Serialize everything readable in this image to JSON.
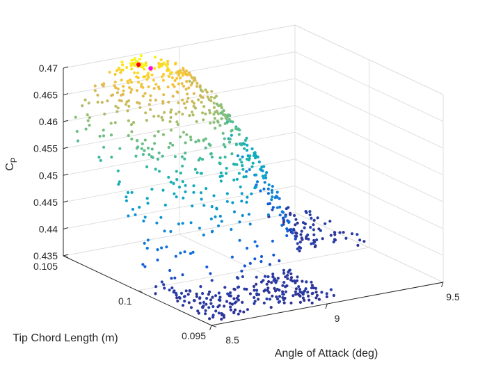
{
  "chart_data": {
    "type": "scatter",
    "title": "",
    "xlabel": "Angle of Attack (deg)",
    "ylabel": "Tip Chord Length (m)",
    "zlabel": "C",
    "zlabel_sub": "P",
    "xlim": [
      8.5,
      9.5
    ],
    "ylim": [
      0.095,
      0.105
    ],
    "zlim": [
      0.435,
      0.47
    ],
    "xticks": [
      "8.5",
      "9",
      "9.5"
    ],
    "yticks": [
      "0.095",
      "0.1",
      "0.105"
    ],
    "zticks": [
      "0.435",
      "0.44",
      "0.445",
      "0.45",
      "0.455",
      "0.46",
      "0.465",
      "0.47"
    ],
    "grid": true,
    "colormap": "parula",
    "colors": {
      "axis": "#262626",
      "grid": "#dfdfdf",
      "best_point": "#ff0000",
      "selected_point": "#ff00ff"
    },
    "highlight_points": [
      {
        "x": 8.78,
        "y": 0.1043,
        "z": 0.4693,
        "color": "#ff0000"
      },
      {
        "x": 8.8,
        "y": 0.1038,
        "z": 0.4691,
        "color": "#ff00ff"
      }
    ]
  }
}
